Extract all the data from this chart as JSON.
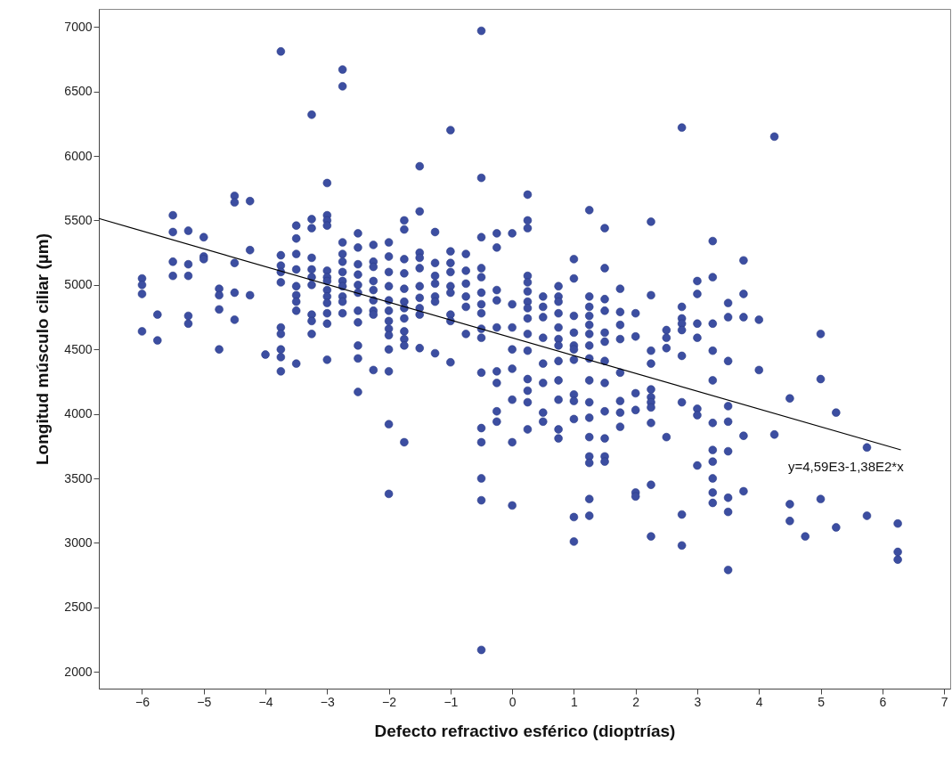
{
  "chart_data": {
    "type": "scatter",
    "xlabel": "Defecto refractivo esférico (dioptrías)",
    "ylabel": "Longitud músculo ciliar (µm)",
    "xlim": [
      -6.7,
      7.1
    ],
    "xticks": [
      -6,
      -5,
      -4,
      -3,
      -2,
      -1,
      0,
      1,
      2,
      3,
      4,
      5,
      6,
      7
    ],
    "ylim": [
      1870,
      7140
    ],
    "yticks": [
      2000,
      2500,
      3000,
      3500,
      4000,
      4500,
      5000,
      5500,
      6000,
      6500,
      7000
    ],
    "grid": false,
    "marker": "circle",
    "annotations": [
      "y=4,59E3-1,38E2*x"
    ],
    "series": [
      {
        "type": "scatter",
        "color": "#3c4ea1",
        "x": [
          -6,
          -6,
          -6,
          -6,
          -5.75,
          -5.75,
          -5.5,
          -5.5,
          -5.5,
          -5.5,
          -5.25,
          -5.25,
          -5.25,
          -5.25,
          -5.25,
          -5,
          -5,
          -5,
          -4.75,
          -4.75,
          -4.75,
          -4.75,
          -4.5,
          -4.5,
          -4.5,
          -4.5,
          -4.5,
          -4.25,
          -4.25,
          -4.25,
          -4,
          -3.75,
          -3.75,
          -3.75,
          -3.75,
          -3.75,
          -3.75,
          -3.75,
          -3.75,
          -3.75,
          -3.75,
          -3.5,
          -3.5,
          -3.5,
          -3.5,
          -3.5,
          -3.5,
          -3.5,
          -3.5,
          -3.5,
          -3.25,
          -3.25,
          -3.25,
          -3.25,
          -3.25,
          -3.25,
          -3.25,
          -3.25,
          -3.25,
          -3.25,
          -3,
          -3,
          -3,
          -3,
          -3,
          -3,
          -3,
          -3,
          -3,
          -3,
          -3,
          -3,
          -3,
          -2.75,
          -2.75,
          -2.75,
          -2.75,
          -2.75,
          -2.75,
          -2.75,
          -2.75,
          -2.75,
          -2.75,
          -2.75,
          -2.5,
          -2.5,
          -2.5,
          -2.5,
          -2.5,
          -2.5,
          -2.5,
          -2.5,
          -2.5,
          -2.5,
          -2.5,
          -2.25,
          -2.25,
          -2.25,
          -2.25,
          -2.25,
          -2.25,
          -2.25,
          -2.25,
          -2.25,
          -2,
          -2,
          -2,
          -2,
          -2,
          -2,
          -2,
          -2,
          -2,
          -2,
          -2,
          -2,
          -2,
          -1.75,
          -1.75,
          -1.75,
          -1.75,
          -1.75,
          -1.75,
          -1.75,
          -1.75,
          -1.75,
          -1.75,
          -1.75,
          -1.75,
          -1.5,
          -1.5,
          -1.5,
          -1.5,
          -1.5,
          -1.5,
          -1.5,
          -1.5,
          -1.5,
          -1.5,
          -1.25,
          -1.25,
          -1.25,
          -1.25,
          -1.25,
          -1.25,
          -1.25,
          -1,
          -1,
          -1,
          -1,
          -1,
          -1,
          -1,
          -1,
          -1,
          -0.75,
          -0.75,
          -0.75,
          -0.75,
          -0.75,
          -0.75,
          -0.5,
          -0.5,
          -0.5,
          -0.5,
          -0.5,
          -0.5,
          -0.5,
          -0.5,
          -0.5,
          -0.5,
          -0.5,
          -0.5,
          -0.5,
          -0.5,
          -0.5,
          -0.5,
          -0.25,
          -0.25,
          -0.25,
          -0.25,
          -0.25,
          -0.25,
          -0.25,
          -0.25,
          -0.25,
          0,
          0,
          0,
          0,
          0,
          0,
          0,
          0,
          0.25,
          0.25,
          0.25,
          0.25,
          0.25,
          0.25,
          0.25,
          0.25,
          0.25,
          0.25,
          0.25,
          0.25,
          0.25,
          0.25,
          0.25,
          0.5,
          0.5,
          0.5,
          0.5,
          0.5,
          0.5,
          0.5,
          0.5,
          0.75,
          0.75,
          0.75,
          0.75,
          0.75,
          0.75,
          0.75,
          0.75,
          0.75,
          0.75,
          0.75,
          0.75,
          1,
          1,
          1,
          1,
          1,
          1,
          1,
          1,
          1,
          1,
          1,
          1,
          1.25,
          1.25,
          1.25,
          1.25,
          1.25,
          1.25,
          1.25,
          1.25,
          1.25,
          1.25,
          1.25,
          1.25,
          1.25,
          1.25,
          1.25,
          1.25,
          1.5,
          1.5,
          1.5,
          1.5,
          1.5,
          1.5,
          1.5,
          1.5,
          1.5,
          1.5,
          1.5,
          1.5,
          1.75,
          1.75,
          1.75,
          1.75,
          1.75,
          1.75,
          1.75,
          1.75,
          2,
          2,
          2,
          2,
          2,
          2,
          2.25,
          2.25,
          2.25,
          2.25,
          2.25,
          2.25,
          2.25,
          2.25,
          2.25,
          2.25,
          2.25,
          2.5,
          2.5,
          2.5,
          2.5,
          2.75,
          2.75,
          2.75,
          2.75,
          2.75,
          2.75,
          2.75,
          2.75,
          2.75,
          3,
          3,
          3,
          3,
          3,
          3,
          3,
          3.25,
          3.25,
          3.25,
          3.25,
          3.25,
          3.25,
          3.25,
          3.25,
          3.25,
          3.25,
          3.25,
          3.5,
          3.5,
          3.5,
          3.5,
          3.5,
          3.5,
          3.5,
          3.5,
          3.5,
          3.75,
          3.75,
          3.75,
          3.75,
          3.75,
          4,
          4,
          4.25,
          4.25,
          4.5,
          4.5,
          4.5,
          4.75,
          5,
          5,
          5,
          5.25,
          5.25,
          5.75,
          5.75,
          6.25,
          6.25,
          6.25
        ],
        "values": [
          5050,
          5000,
          4930,
          4640,
          4770,
          4570,
          5540,
          5410,
          5180,
          5070,
          5420,
          5160,
          5070,
          4760,
          4700,
          5370,
          5220,
          5200,
          4970,
          4920,
          4810,
          4500,
          5690,
          5640,
          5170,
          4940,
          4730,
          5650,
          5270,
          4920,
          4460,
          6810,
          5230,
          5150,
          5100,
          5020,
          4670,
          4620,
          4500,
          4440,
          4330,
          5460,
          5360,
          5240,
          5120,
          4990,
          4920,
          4870,
          4800,
          4390,
          6320,
          5510,
          5440,
          5210,
          5120,
          5060,
          5000,
          4770,
          4720,
          4620,
          5790,
          5540,
          5500,
          5460,
          5110,
          5060,
          5030,
          4960,
          4910,
          4860,
          4780,
          4700,
          4420,
          6670,
          6540,
          5330,
          5240,
          5180,
          5100,
          5030,
          4990,
          4910,
          4870,
          4780,
          5400,
          5290,
          5160,
          5080,
          5000,
          4940,
          4800,
          4710,
          4530,
          4430,
          4170,
          5310,
          5180,
          5140,
          5030,
          4960,
          4880,
          4800,
          4770,
          4340,
          5330,
          5220,
          5100,
          4990,
          4880,
          4800,
          4720,
          4660,
          4610,
          4500,
          4330,
          3920,
          3380,
          5500,
          5430,
          5200,
          5090,
          4970,
          4870,
          4820,
          4740,
          4640,
          4580,
          4530,
          3780,
          5920,
          5570,
          5250,
          5210,
          5130,
          4990,
          4900,
          4820,
          4770,
          4510,
          5410,
          5170,
          5070,
          5010,
          4910,
          4870,
          4470,
          6200,
          5260,
          5170,
          5100,
          4990,
          4940,
          4770,
          4720,
          4400,
          5240,
          5110,
          5010,
          4910,
          4830,
          4620,
          6970,
          5830,
          5370,
          5130,
          5060,
          4940,
          4850,
          4780,
          4660,
          4590,
          4320,
          3890,
          3780,
          3500,
          3330,
          2170,
          5400,
          5290,
          4960,
          4880,
          4670,
          4330,
          4240,
          4020,
          3940,
          5400,
          4850,
          4670,
          4500,
          4350,
          4110,
          3780,
          3290,
          5700,
          5500,
          5440,
          5070,
          5020,
          4950,
          4870,
          4820,
          4740,
          4620,
          4490,
          4270,
          4180,
          4090,
          3880,
          4910,
          4830,
          4750,
          4590,
          4390,
          4240,
          4010,
          3940,
          4990,
          4910,
          4870,
          4780,
          4670,
          4580,
          4530,
          4410,
          4260,
          4110,
          3880,
          3810,
          5200,
          5050,
          4760,
          4630,
          4530,
          4500,
          4420,
          4150,
          4100,
          3960,
          3200,
          3010,
          5580,
          4910,
          4830,
          4760,
          4690,
          4620,
          4530,
          4430,
          4260,
          4090,
          3970,
          3820,
          3670,
          3620,
          3340,
          3210,
          5440,
          5130,
          4890,
          4800,
          4630,
          4560,
          4410,
          4240,
          4020,
          3810,
          3670,
          3630,
          4970,
          4790,
          4690,
          4580,
          4320,
          4100,
          4010,
          3900,
          4780,
          4600,
          4160,
          4030,
          3390,
          3360,
          5490,
          4920,
          4490,
          4390,
          4190,
          4130,
          4090,
          4050,
          3930,
          3450,
          3050,
          4650,
          4590,
          4510,
          3820,
          6220,
          4830,
          4740,
          4700,
          4650,
          4450,
          4090,
          3220,
          2980,
          5030,
          4930,
          4700,
          4590,
          4040,
          3990,
          3600,
          5340,
          5060,
          4700,
          4490,
          4260,
          3930,
          3720,
          3630,
          3500,
          3390,
          3310,
          4860,
          4750,
          4410,
          4060,
          3940,
          3710,
          3350,
          3240,
          2790,
          5190,
          4930,
          4750,
          3830,
          3400,
          4730,
          4340,
          6150,
          3840,
          4120,
          3300,
          3170,
          3050,
          4620,
          4270,
          3340,
          4010,
          3120,
          3740,
          3210,
          3150,
          2930,
          2870
        ]
      },
      {
        "type": "line",
        "color": "#000000",
        "marker": "none",
        "x": [
          -6.7,
          6.3
        ],
        "values": [
          5515,
          3721
        ]
      }
    ]
  }
}
